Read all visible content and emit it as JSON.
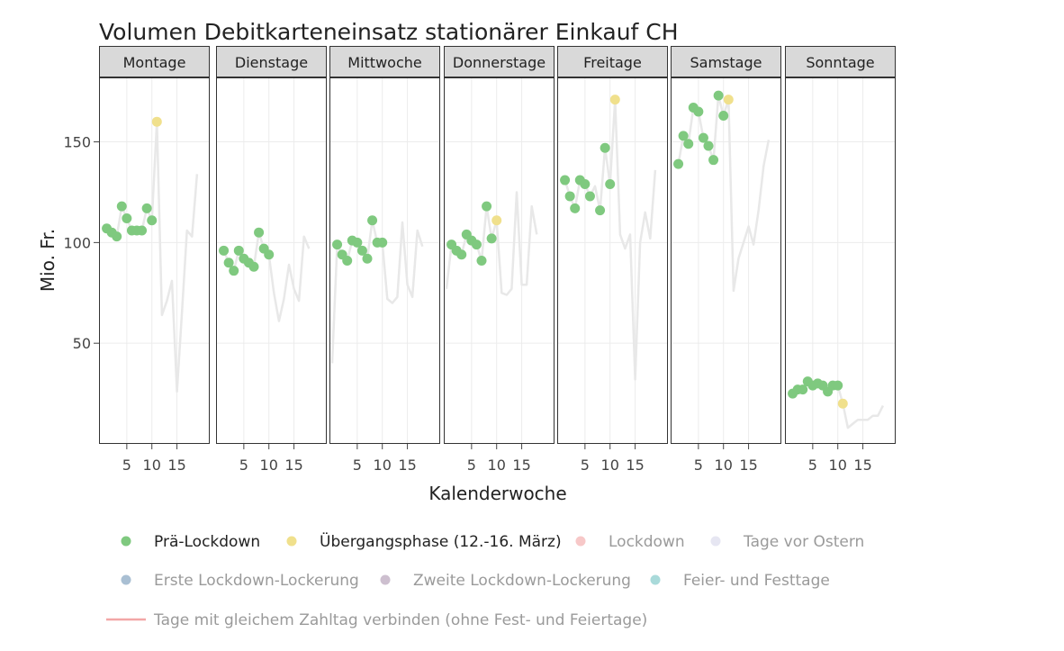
{
  "chart_data": {
    "type": "scatter",
    "title": "Volumen Debitkarteneinsatz stationärer Einkauf CH",
    "xlabel": "Kalenderwoche",
    "ylabel": "Mio. Fr.",
    "ylim": [
      0,
      182
    ],
    "xlim": [
      0,
      21
    ],
    "x_ticks": [
      5,
      10,
      15
    ],
    "y_ticks": [
      50,
      100,
      150
    ],
    "grid": true,
    "legend_position": "bottom",
    "facets": [
      {
        "label": "Montage",
        "line": [
          [
            1,
            107
          ],
          [
            2,
            105
          ],
          [
            3,
            103
          ],
          [
            4,
            118
          ],
          [
            5,
            112
          ],
          [
            6,
            106
          ],
          [
            7,
            106
          ],
          [
            8,
            106
          ],
          [
            9,
            117
          ],
          [
            10,
            111
          ],
          [
            11,
            160
          ],
          [
            12,
            64
          ],
          [
            13,
            71
          ],
          [
            14,
            81
          ],
          [
            15,
            26
          ],
          [
            16,
            65
          ],
          [
            17,
            106
          ],
          [
            18,
            103
          ],
          [
            19,
            134
          ]
        ],
        "points": [
          {
            "x": 1,
            "y": 107,
            "phase": "Prä-Lockdown"
          },
          {
            "x": 2,
            "y": 105,
            "phase": "Prä-Lockdown"
          },
          {
            "x": 3,
            "y": 103,
            "phase": "Prä-Lockdown"
          },
          {
            "x": 4,
            "y": 118,
            "phase": "Prä-Lockdown"
          },
          {
            "x": 5,
            "y": 112,
            "phase": "Prä-Lockdown"
          },
          {
            "x": 6,
            "y": 106,
            "phase": "Prä-Lockdown"
          },
          {
            "x": 7,
            "y": 106,
            "phase": "Prä-Lockdown"
          },
          {
            "x": 8,
            "y": 106,
            "phase": "Prä-Lockdown"
          },
          {
            "x": 9,
            "y": 117,
            "phase": "Prä-Lockdown"
          },
          {
            "x": 10,
            "y": 111,
            "phase": "Prä-Lockdown"
          },
          {
            "x": 11,
            "y": 160,
            "phase": "Übergangsphase (12.-16. März)"
          }
        ]
      },
      {
        "label": "Dienstage",
        "line": [
          [
            1,
            96
          ],
          [
            2,
            90
          ],
          [
            3,
            86
          ],
          [
            4,
            96
          ],
          [
            5,
            92
          ],
          [
            6,
            90
          ],
          [
            7,
            88
          ],
          [
            8,
            105
          ],
          [
            9,
            97
          ],
          [
            10,
            94
          ],
          [
            11,
            75
          ],
          [
            12,
            61
          ],
          [
            13,
            72
          ],
          [
            14,
            89
          ],
          [
            15,
            77
          ],
          [
            16,
            71
          ],
          [
            17,
            103
          ],
          [
            18,
            97
          ]
        ],
        "points": [
          {
            "x": 1,
            "y": 96,
            "phase": "Prä-Lockdown"
          },
          {
            "x": 2,
            "y": 90,
            "phase": "Prä-Lockdown"
          },
          {
            "x": 3,
            "y": 86,
            "phase": "Prä-Lockdown"
          },
          {
            "x": 4,
            "y": 96,
            "phase": "Prä-Lockdown"
          },
          {
            "x": 5,
            "y": 92,
            "phase": "Prä-Lockdown"
          },
          {
            "x": 6,
            "y": 90,
            "phase": "Prä-Lockdown"
          },
          {
            "x": 7,
            "y": 88,
            "phase": "Prä-Lockdown"
          },
          {
            "x": 8,
            "y": 105,
            "phase": "Prä-Lockdown"
          },
          {
            "x": 9,
            "y": 97,
            "phase": "Prä-Lockdown"
          },
          {
            "x": 10,
            "y": 94,
            "phase": "Prä-Lockdown"
          }
        ]
      },
      {
        "label": "Mittwoche",
        "line": [
          [
            0,
            40
          ],
          [
            1,
            99
          ],
          [
            2,
            94
          ],
          [
            3,
            91
          ],
          [
            4,
            101
          ],
          [
            5,
            100
          ],
          [
            6,
            96
          ],
          [
            7,
            92
          ],
          [
            8,
            111
          ],
          [
            9,
            100
          ],
          [
            10,
            100
          ],
          [
            11,
            72
          ],
          [
            12,
            70
          ],
          [
            13,
            73
          ],
          [
            14,
            110
          ],
          [
            15,
            79
          ],
          [
            16,
            73
          ],
          [
            17,
            106
          ],
          [
            18,
            98
          ]
        ],
        "points": [
          {
            "x": 1,
            "y": 99,
            "phase": "Prä-Lockdown"
          },
          {
            "x": 2,
            "y": 94,
            "phase": "Prä-Lockdown"
          },
          {
            "x": 3,
            "y": 91,
            "phase": "Prä-Lockdown"
          },
          {
            "x": 4,
            "y": 101,
            "phase": "Prä-Lockdown"
          },
          {
            "x": 5,
            "y": 100,
            "phase": "Prä-Lockdown"
          },
          {
            "x": 6,
            "y": 96,
            "phase": "Prä-Lockdown"
          },
          {
            "x": 7,
            "y": 92,
            "phase": "Prä-Lockdown"
          },
          {
            "x": 8,
            "y": 111,
            "phase": "Prä-Lockdown"
          },
          {
            "x": 9,
            "y": 100,
            "phase": "Prä-Lockdown"
          },
          {
            "x": 10,
            "y": 100,
            "phase": "Prä-Lockdown"
          }
        ]
      },
      {
        "label": "Donnerstage",
        "line": [
          [
            0,
            77
          ],
          [
            1,
            99
          ],
          [
            2,
            96
          ],
          [
            3,
            94
          ],
          [
            4,
            104
          ],
          [
            5,
            101
          ],
          [
            6,
            99
          ],
          [
            7,
            91
          ],
          [
            8,
            118
          ],
          [
            9,
            102
          ],
          [
            10,
            111
          ],
          [
            11,
            75
          ],
          [
            12,
            74
          ],
          [
            13,
            77
          ],
          [
            14,
            125
          ],
          [
            15,
            79
          ],
          [
            16,
            79
          ],
          [
            17,
            118
          ],
          [
            18,
            104
          ]
        ],
        "points": [
          {
            "x": 1,
            "y": 99,
            "phase": "Prä-Lockdown"
          },
          {
            "x": 2,
            "y": 96,
            "phase": "Prä-Lockdown"
          },
          {
            "x": 3,
            "y": 94,
            "phase": "Prä-Lockdown"
          },
          {
            "x": 4,
            "y": 104,
            "phase": "Prä-Lockdown"
          },
          {
            "x": 5,
            "y": 101,
            "phase": "Prä-Lockdown"
          },
          {
            "x": 6,
            "y": 99,
            "phase": "Prä-Lockdown"
          },
          {
            "x": 7,
            "y": 91,
            "phase": "Prä-Lockdown"
          },
          {
            "x": 8,
            "y": 118,
            "phase": "Prä-Lockdown"
          },
          {
            "x": 9,
            "y": 102,
            "phase": "Prä-Lockdown"
          },
          {
            "x": 10,
            "y": 111,
            "phase": "Übergangsphase (12.-16. März)"
          }
        ]
      },
      {
        "label": "Freitage",
        "line": [
          [
            1,
            131
          ],
          [
            2,
            123
          ],
          [
            3,
            117
          ],
          [
            4,
            131
          ],
          [
            5,
            129
          ],
          [
            6,
            123
          ],
          [
            7,
            128
          ],
          [
            8,
            116
          ],
          [
            9,
            147
          ],
          [
            10,
            129
          ],
          [
            11,
            171
          ],
          [
            12,
            104
          ],
          [
            13,
            97
          ],
          [
            14,
            104
          ],
          [
            15,
            32
          ],
          [
            16,
            100
          ],
          [
            17,
            115
          ],
          [
            18,
            102
          ],
          [
            19,
            136
          ]
        ],
        "points": [
          {
            "x": 1,
            "y": 131,
            "phase": "Prä-Lockdown"
          },
          {
            "x": 2,
            "y": 123,
            "phase": "Prä-Lockdown"
          },
          {
            "x": 3,
            "y": 117,
            "phase": "Prä-Lockdown"
          },
          {
            "x": 4,
            "y": 131,
            "phase": "Prä-Lockdown"
          },
          {
            "x": 5,
            "y": 129,
            "phase": "Prä-Lockdown"
          },
          {
            "x": 6,
            "y": 123,
            "phase": "Prä-Lockdown"
          },
          {
            "x": 8,
            "y": 116,
            "phase": "Prä-Lockdown"
          },
          {
            "x": 9,
            "y": 147,
            "phase": "Prä-Lockdown"
          },
          {
            "x": 10,
            "y": 129,
            "phase": "Prä-Lockdown"
          },
          {
            "x": 11,
            "y": 171,
            "phase": "Übergangsphase (12.-16. März)"
          }
        ]
      },
      {
        "label": "Samstage",
        "line": [
          [
            1,
            139
          ],
          [
            2,
            153
          ],
          [
            3,
            149
          ],
          [
            4,
            167
          ],
          [
            5,
            165
          ],
          [
            6,
            152
          ],
          [
            7,
            148
          ],
          [
            8,
            141
          ],
          [
            9,
            173
          ],
          [
            10,
            163
          ],
          [
            11,
            171
          ],
          [
            12,
            76
          ],
          [
            13,
            92
          ],
          [
            14,
            100
          ],
          [
            15,
            108
          ],
          [
            16,
            99
          ],
          [
            17,
            116
          ],
          [
            18,
            138
          ],
          [
            19,
            151
          ]
        ],
        "points": [
          {
            "x": 1,
            "y": 139,
            "phase": "Prä-Lockdown"
          },
          {
            "x": 2,
            "y": 153,
            "phase": "Prä-Lockdown"
          },
          {
            "x": 3,
            "y": 149,
            "phase": "Prä-Lockdown"
          },
          {
            "x": 4,
            "y": 167,
            "phase": "Prä-Lockdown"
          },
          {
            "x": 5,
            "y": 165,
            "phase": "Prä-Lockdown"
          },
          {
            "x": 6,
            "y": 152,
            "phase": "Prä-Lockdown"
          },
          {
            "x": 7,
            "y": 148,
            "phase": "Prä-Lockdown"
          },
          {
            "x": 8,
            "y": 141,
            "phase": "Prä-Lockdown"
          },
          {
            "x": 9,
            "y": 173,
            "phase": "Prä-Lockdown"
          },
          {
            "x": 10,
            "y": 163,
            "phase": "Prä-Lockdown"
          },
          {
            "x": 11,
            "y": 171,
            "phase": "Übergangsphase (12.-16. März)"
          }
        ]
      },
      {
        "label": "Sonntage",
        "line": [
          [
            1,
            25
          ],
          [
            2,
            27
          ],
          [
            3,
            27
          ],
          [
            4,
            31
          ],
          [
            5,
            29
          ],
          [
            6,
            30
          ],
          [
            7,
            29
          ],
          [
            8,
            26
          ],
          [
            9,
            29
          ],
          [
            10,
            29
          ],
          [
            11,
            20
          ],
          [
            12,
            8
          ],
          [
            13,
            10
          ],
          [
            14,
            12
          ],
          [
            15,
            12
          ],
          [
            16,
            12
          ],
          [
            17,
            14
          ],
          [
            18,
            14
          ],
          [
            19,
            19
          ]
        ],
        "points": [
          {
            "x": 1,
            "y": 25,
            "phase": "Prä-Lockdown"
          },
          {
            "x": 2,
            "y": 27,
            "phase": "Prä-Lockdown"
          },
          {
            "x": 3,
            "y": 27,
            "phase": "Prä-Lockdown"
          },
          {
            "x": 4,
            "y": 31,
            "phase": "Prä-Lockdown"
          },
          {
            "x": 5,
            "y": 29,
            "phase": "Prä-Lockdown"
          },
          {
            "x": 6,
            "y": 30,
            "phase": "Prä-Lockdown"
          },
          {
            "x": 7,
            "y": 29,
            "phase": "Prä-Lockdown"
          },
          {
            "x": 8,
            "y": 26,
            "phase": "Prä-Lockdown"
          },
          {
            "x": 9,
            "y": 29,
            "phase": "Prä-Lockdown"
          },
          {
            "x": 10,
            "y": 29,
            "phase": "Prä-Lockdown"
          },
          {
            "x": 11,
            "y": 20,
            "phase": "Übergangsphase (12.-16. März)"
          }
        ]
      }
    ],
    "legend": [
      {
        "label": "Prä-Lockdown",
        "color": "#7fc97f",
        "active": true,
        "kind": "point"
      },
      {
        "label": "Übergangsphase (12.-16. März)",
        "color": "#f0e08c",
        "active": true,
        "kind": "point"
      },
      {
        "label": "Lockdown",
        "color": "#f7c8c8",
        "active": false,
        "kind": "point"
      },
      {
        "label": "Tage vor Ostern",
        "color": "#e6e6f2",
        "active": false,
        "kind": "point"
      },
      {
        "label": "Erste Lockdown-Lockerung",
        "color": "#a9bfd3",
        "active": false,
        "kind": "point"
      },
      {
        "label": "Zweite Lockdown-Lockerung",
        "color": "#cdbfcf",
        "active": false,
        "kind": "point"
      },
      {
        "label": "Feier- und Festtage",
        "color": "#a9dada",
        "active": false,
        "kind": "point"
      },
      {
        "label": "Tage mit gleichem Zahltag  verbinden (ohne Fest- und Feiertage)",
        "color": "#f2a7a7",
        "active": false,
        "kind": "line"
      }
    ],
    "colors": {
      "Prä-Lockdown": "#7fc97f",
      "Übergangsphase (12.-16. März)": "#f0e08c",
      "line": "#e8e8e8",
      "strip": "#d9d9d9",
      "panel_border": "#333333",
      "grid": "#ececec",
      "text": "#444444",
      "inactive_text": "#9a9a9a"
    }
  }
}
